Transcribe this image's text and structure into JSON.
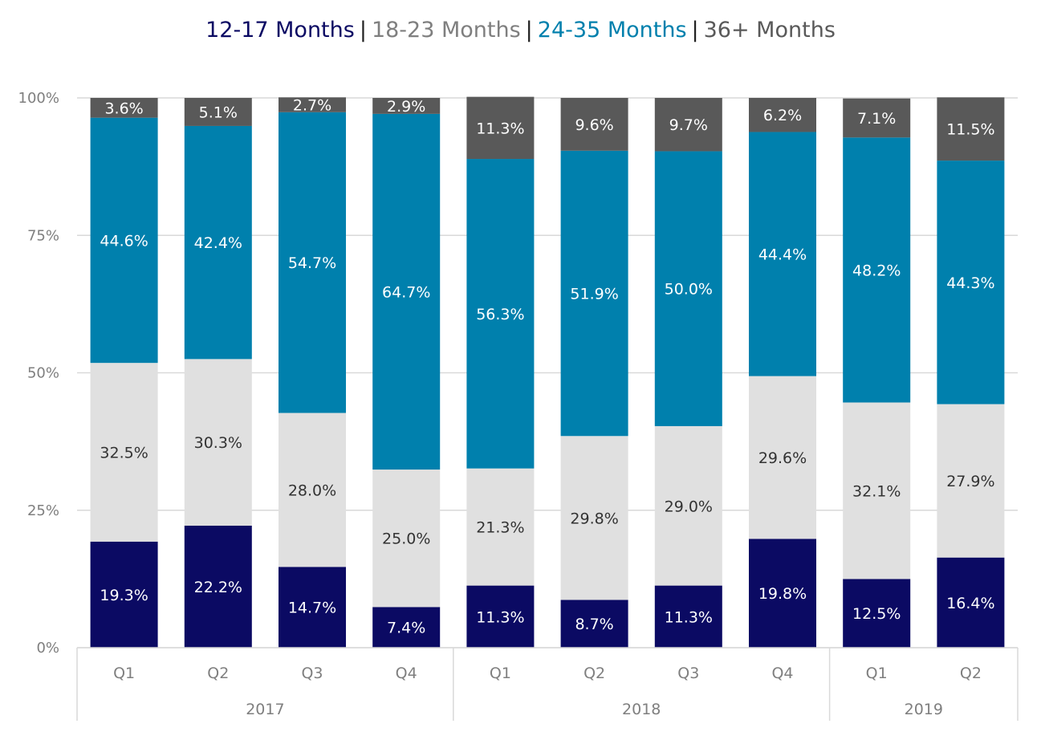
{
  "chart_data": {
    "type": "bar",
    "stacked": true,
    "title_legend": [
      {
        "name": "12-17 Months",
        "color": "#0b0a63"
      },
      {
        "name": "18-23 Months",
        "color": "#7f7f7f"
      },
      {
        "name": "24-35 Months",
        "color": "#0080ad"
      },
      {
        "name": "36+ Months",
        "color": "#595959"
      }
    ],
    "legend_separator": "|",
    "categories": [
      "Q1",
      "Q2",
      "Q3",
      "Q4",
      "Q1",
      "Q2",
      "Q3",
      "Q4",
      "Q1",
      "Q2"
    ],
    "groups": [
      {
        "label": "2017",
        "count": 4
      },
      {
        "label": "2018",
        "count": 4
      },
      {
        "label": "2019",
        "count": 2
      }
    ],
    "series": [
      {
        "name": "12-17 Months",
        "color": "#0b0a63",
        "label_color": "#ffffff",
        "values": [
          19.3,
          22.2,
          14.7,
          7.4,
          11.3,
          8.7,
          11.3,
          19.8,
          12.5,
          16.4
        ],
        "labels": [
          "19.3%",
          "22.2%",
          "14.7%",
          "7.4%",
          "11.3%",
          "8.7%",
          "11.3%",
          "19.8%",
          "12.5%",
          "16.4%"
        ]
      },
      {
        "name": "18-23 Months",
        "color": "#e0e0e0",
        "label_color": "#333333",
        "values": [
          32.5,
          30.3,
          28.0,
          25.0,
          21.3,
          29.8,
          29.0,
          29.6,
          32.1,
          27.9
        ],
        "labels": [
          "32.5%",
          "30.3%",
          "28.0%",
          "25.0%",
          "21.3%",
          "29.8%",
          "29.0%",
          "29.6%",
          "32.1%",
          "27.9%"
        ]
      },
      {
        "name": "24-35 Months",
        "color": "#0080ad",
        "label_color": "#ffffff",
        "values": [
          44.6,
          42.4,
          54.7,
          64.7,
          56.3,
          51.9,
          50.0,
          44.4,
          48.2,
          44.3
        ],
        "labels": [
          "44.6%",
          "42.4%",
          "54.7%",
          "64.7%",
          "56.3%",
          "51.9%",
          "50.0%",
          "44.4%",
          "48.2%",
          "44.3%"
        ]
      },
      {
        "name": "36+ Months",
        "color": "#595959",
        "label_color": "#ffffff",
        "values": [
          3.6,
          5.1,
          2.7,
          2.9,
          11.3,
          9.6,
          9.7,
          6.2,
          7.1,
          11.5
        ],
        "labels": [
          "3.6%",
          "5.1%",
          "2.7%",
          "2.9%",
          "11.3%",
          "9.6%",
          "9.7%",
          "6.2%",
          "7.1%",
          "11.5%"
        ]
      }
    ],
    "ylim": [
      0,
      100
    ],
    "yticks": [
      "0%",
      "25%",
      "50%",
      "75%",
      "100%"
    ],
    "grid": true,
    "legend_position": "top-center"
  }
}
